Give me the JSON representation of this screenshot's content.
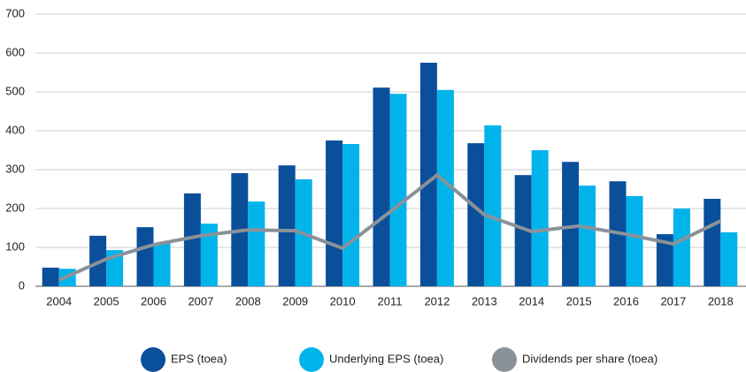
{
  "chart_data": {
    "type": "bar_line",
    "categories": [
      "2004",
      "2005",
      "2006",
      "2007",
      "2008",
      "2009",
      "2010",
      "2011",
      "2012",
      "2013",
      "2014",
      "2015",
      "2016",
      "2017",
      "2018"
    ],
    "series": [
      {
        "name": "EPS (toea)",
        "type": "bar",
        "color": "#0a4f9a",
        "values": [
          48,
          130,
          152,
          239,
          291,
          311,
          375,
          511,
          575,
          368,
          286,
          320,
          270,
          134,
          225
        ]
      },
      {
        "name": "Underlying EPS (toea)",
        "type": "bar",
        "color": "#00b4eb",
        "values": [
          45,
          93,
          111,
          161,
          218,
          275,
          366,
          495,
          505,
          414,
          350,
          259,
          232,
          200,
          139
        ]
      },
      {
        "name": "Dividends per share (toea)",
        "type": "line",
        "color": "#8a9299",
        "values": [
          16,
          70,
          107,
          130,
          145,
          143,
          98,
          191,
          286,
          184,
          141,
          155,
          134,
          109,
          168
        ]
      }
    ],
    "ylim": [
      0,
      700
    ],
    "yticks": [
      0,
      100,
      200,
      300,
      400,
      500,
      600,
      700
    ],
    "grid": true,
    "legend": "bottom"
  }
}
